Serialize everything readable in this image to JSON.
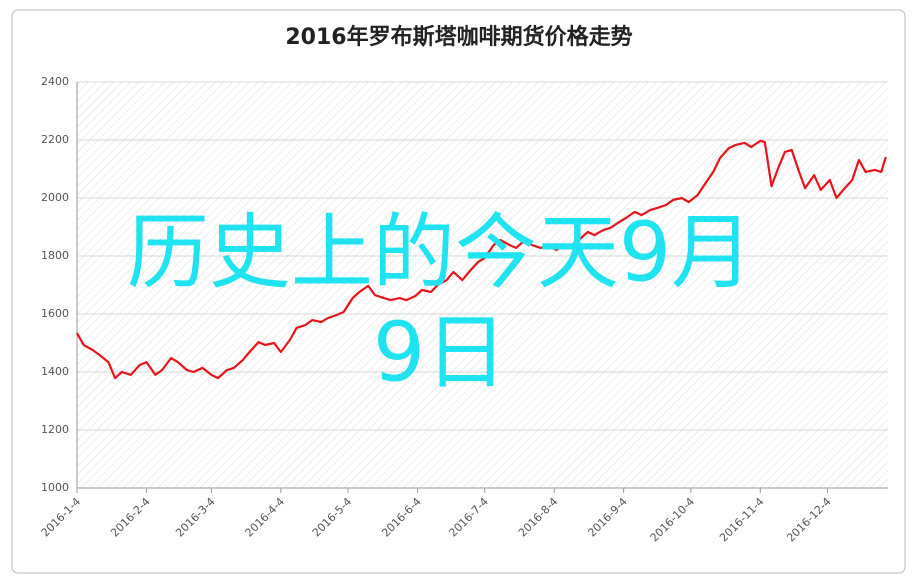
{
  "chart_data": {
    "type": "line",
    "title": "2016年罗布斯塔咖啡期货价格走势",
    "annotations": [
      "历史上的今天9月",
      "9日"
    ],
    "xlim": [
      0,
      362
    ],
    "xticks": [
      {
        "value": 0,
        "label": "2016-1-4"
      },
      {
        "value": 31,
        "label": "2016-2-4"
      },
      {
        "value": 60,
        "label": "2016-3-4"
      },
      {
        "value": 91,
        "label": "2016-4-4"
      },
      {
        "value": 121,
        "label": "2016-5-4"
      },
      {
        "value": 152,
        "label": "2016-6-4"
      },
      {
        "value": 182,
        "label": "2016-7-4"
      },
      {
        "value": 213,
        "label": "2016-8-4"
      },
      {
        "value": 244,
        "label": "2016-9-4"
      },
      {
        "value": 274,
        "label": "2016-10-4"
      },
      {
        "value": 305,
        "label": "2016-11-4"
      },
      {
        "value": 335,
        "label": "2016-12-4"
      }
    ],
    "ylim": [
      1000,
      2400
    ],
    "yticks": [
      1000,
      1200,
      1400,
      1600,
      1800,
      2000,
      2200,
      2400
    ],
    "grid": true,
    "series": [
      {
        "color": "#e8141b",
        "x": [
          0,
          3,
          7,
          10,
          14,
          17,
          20,
          24,
          28,
          31,
          35,
          38,
          42,
          45,
          49,
          52,
          56,
          60,
          63,
          67,
          70,
          74,
          77,
          81,
          84,
          88,
          91,
          95,
          98,
          102,
          105,
          109,
          112,
          116,
          119,
          123,
          126,
          130,
          133,
          137,
          140,
          144,
          147,
          151,
          154,
          158,
          161,
          165,
          168,
          172,
          175,
          179,
          182,
          186,
          189,
          193,
          196,
          200,
          203,
          207,
          210,
          214,
          217,
          221,
          224,
          228,
          231,
          235,
          238,
          242,
          245,
          249,
          252,
          256,
          259,
          263,
          266,
          270,
          273,
          277,
          280,
          284,
          287,
          291,
          294,
          298,
          301,
          305,
          307,
          310,
          313,
          316,
          319,
          322,
          325,
          329,
          332,
          336,
          339,
          342,
          346,
          349,
          352,
          356,
          359,
          361
        ],
        "values": [
          1534,
          1493,
          1476,
          1459,
          1434,
          1379,
          1400,
          1390,
          1424,
          1434,
          1390,
          1407,
          1448,
          1434,
          1407,
          1400,
          1414,
          1390,
          1379,
          1407,
          1414,
          1441,
          1469,
          1503,
          1493,
          1500,
          1469,
          1510,
          1552,
          1562,
          1579,
          1572,
          1586,
          1597,
          1607,
          1655,
          1676,
          1697,
          1665,
          1655,
          1648,
          1655,
          1648,
          1662,
          1683,
          1676,
          1700,
          1717,
          1745,
          1717,
          1745,
          1779,
          1793,
          1838,
          1855,
          1838,
          1828,
          1855,
          1838,
          1828,
          1834,
          1821,
          1834,
          1838,
          1855,
          1883,
          1872,
          1890,
          1897,
          1917,
          1931,
          1952,
          1941,
          1959,
          1966,
          1976,
          1993,
          2000,
          1986,
          2010,
          2045,
          2090,
          2138,
          2172,
          2183,
          2190,
          2176,
          2197,
          2193,
          2041,
          2103,
          2159,
          2166,
          2097,
          2034,
          2079,
          2028,
          2062,
          2000,
          2028,
          2062,
          2131,
          2090,
          2097,
          2090,
          2141
        ]
      }
    ]
  }
}
